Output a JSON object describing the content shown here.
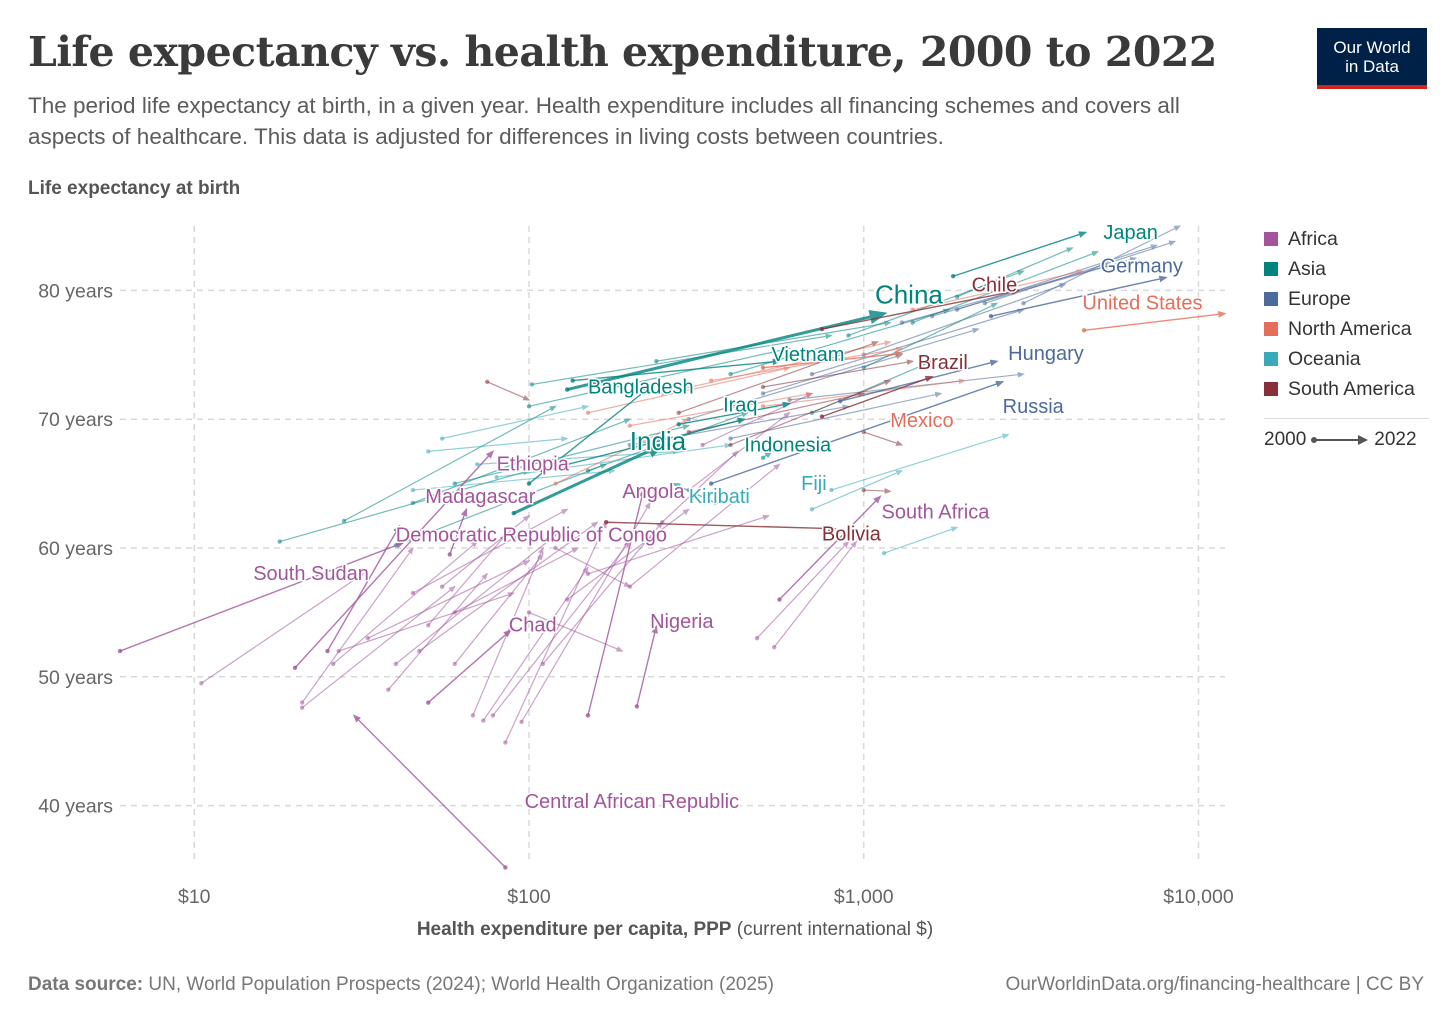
{
  "header": {
    "title": "Life expectancy vs. health expenditure, 2000 to 2022",
    "subtitle": "The period life expectancy at birth, in a given year. Health expenditure includes all financing schemes and covers all aspects of healthcare. This data is adjusted for differences in living costs between countries.",
    "logo_line1": "Our World",
    "logo_line2": "in Data"
  },
  "footer": {
    "source_label": "Data source:",
    "source_text": "UN, World Population Prospects (2024); World Health Organization (2025)",
    "right_text": "OurWorldinData.org/financing-healthcare | CC BY"
  },
  "colors": {
    "Africa": "#a2559c",
    "Asia": "#00847e",
    "Europe": "#4c6a9c",
    "North America": "#e56e5a",
    "Oceania": "#38aaba",
    "South America": "#883039"
  },
  "legend": {
    "items": [
      "Africa",
      "Asia",
      "Europe",
      "North America",
      "Oceania",
      "South America"
    ],
    "time_start": "2000",
    "time_end": "2022"
  },
  "chart_data": {
    "type": "scatter",
    "title": "Life expectancy vs. health expenditure, 2000 to 2022",
    "ylabel": "Life expectancy at birth",
    "xlabel_bold": "Health expenditure per capita, PPP",
    "xlabel_rest": " (current international $)",
    "x_scale": "log",
    "xlim": [
      6,
      12000
    ],
    "ylim": [
      35,
      85
    ],
    "x_ticks": [
      {
        "value": 10,
        "label": "$10"
      },
      {
        "value": 100,
        "label": "$100"
      },
      {
        "value": 1000,
        "label": "$1,000"
      },
      {
        "value": 10000,
        "label": "$10,000"
      }
    ],
    "y_ticks": [
      {
        "value": 40,
        "label": "40 years"
      },
      {
        "value": 50,
        "label": "50 years"
      },
      {
        "value": 60,
        "label": "60 years"
      },
      {
        "value": 70,
        "label": "70 years"
      },
      {
        "value": 80,
        "label": "80 years"
      }
    ],
    "grid": true,
    "legend_position": "right",
    "labeled_series": [
      {
        "name": "Japan",
        "region": "Asia",
        "x0": 1850,
        "y0": 81.1,
        "x1": 4600,
        "y1": 84.5
      },
      {
        "name": "Germany",
        "region": "Europe",
        "x0": 2400,
        "y0": 78.0,
        "x1": 8000,
        "y1": 81.0
      },
      {
        "name": "China",
        "region": "Asia",
        "x0": 130,
        "y0": 72.3,
        "x1": 1150,
        "y1": 78.2
      },
      {
        "name": "Chile",
        "region": "South America",
        "x0": 750,
        "y0": 77.0,
        "x1": 2900,
        "y1": 80.0
      },
      {
        "name": "United States",
        "region": "North America",
        "x0": 4550,
        "y0": 76.9,
        "x1": 12000,
        "y1": 78.2
      },
      {
        "name": "Vietnam",
        "region": "Asia",
        "x0": 135,
        "y0": 73.0,
        "x1": 560,
        "y1": 74.5
      },
      {
        "name": "Hungary",
        "region": "Europe",
        "x0": 850,
        "y0": 71.4,
        "x1": 2500,
        "y1": 74.5
      },
      {
        "name": "Brazil",
        "region": "South America",
        "x0": 750,
        "y0": 70.2,
        "x1": 1600,
        "y1": 73.3
      },
      {
        "name": "Bangladesh",
        "region": "Asia",
        "x0": 100,
        "y0": 65.0,
        "x1": 230,
        "y1": 72.5
      },
      {
        "name": "Iraq",
        "region": "Asia",
        "x0": 280,
        "y0": 69.6,
        "x1": 600,
        "y1": 71.2
      },
      {
        "name": "Russia",
        "region": "Europe",
        "x0": 350,
        "y0": 65.0,
        "x1": 2600,
        "y1": 72.9
      },
      {
        "name": "Mexico",
        "region": "North America",
        "x0": 500,
        "y0": 74.0,
        "x1": 1300,
        "y1": 75.1
      },
      {
        "name": "India",
        "region": "Asia",
        "x0": 90,
        "y0": 62.7,
        "x1": 250,
        "y1": 68.0
      },
      {
        "name": "Indonesia",
        "region": "Asia",
        "x0": 110,
        "y0": 66.0,
        "x1": 440,
        "y1": 70.0
      },
      {
        "name": "Ethiopia",
        "region": "Africa",
        "x0": 20,
        "y0": 50.7,
        "x1": 78,
        "y1": 67.5
      },
      {
        "name": "Madagascar",
        "region": "Africa",
        "x0": 58,
        "y0": 59.5,
        "x1": 65,
        "y1": 63.0
      },
      {
        "name": "Angola",
        "region": "Africa",
        "x0": 150,
        "y0": 47.0,
        "x1": 220,
        "y1": 64.5
      },
      {
        "name": "Kiribati",
        "region": "Oceania",
        "x0": 360,
        "y0": 63.5,
        "x1": 270,
        "y1": 65.0
      },
      {
        "name": "Fiji",
        "region": "Oceania",
        "x0": 500,
        "y0": 67.0,
        "x1": 530,
        "y1": 67.5
      },
      {
        "name": "South Africa",
        "region": "Africa",
        "x0": 560,
        "y0": 56.0,
        "x1": 1120,
        "y1": 64.0
      },
      {
        "name": "Bolivia",
        "region": "South America",
        "x0": 170,
        "y0": 62.0,
        "x1": 820,
        "y1": 61.5
      },
      {
        "name": "Democratic Republic of Congo",
        "region": "Africa",
        "x0": 25,
        "y0": 52.0,
        "x1": 41,
        "y1": 61.7
      },
      {
        "name": "South Sudan",
        "region": "Africa",
        "x0": 6,
        "y0": 52.0,
        "x1": 42,
        "y1": 60.4
      },
      {
        "name": "Chad",
        "region": "Africa",
        "x0": 50,
        "y0": 48.0,
        "x1": 88,
        "y1": 53.6
      },
      {
        "name": "Nigeria",
        "region": "Africa",
        "x0": 210,
        "y0": 47.7,
        "x1": 240,
        "y1": 53.9
      },
      {
        "name": "Central African Republic",
        "region": "Africa",
        "x0": 85,
        "y0": 35.2,
        "x1": 30,
        "y1": 47.0
      }
    ],
    "labels": [
      {
        "text": "Japan",
        "region": "Asia",
        "x": 5200,
        "y": 84.0
      },
      {
        "text": "Germany",
        "region": "Europe",
        "x": 5100,
        "y": 81.4
      },
      {
        "text": "China",
        "region": "Asia",
        "x": 1080,
        "y": 79.0,
        "big": true
      },
      {
        "text": "Chile",
        "region": "South America",
        "x": 2100,
        "y": 79.9
      },
      {
        "text": "United States",
        "region": "North America",
        "x": 4500,
        "y": 78.5
      },
      {
        "text": "Vietnam",
        "region": "Asia",
        "x": 530,
        "y": 74.5
      },
      {
        "text": "Hungary",
        "region": "Europe",
        "x": 2700,
        "y": 74.6
      },
      {
        "text": "Brazil",
        "region": "South America",
        "x": 1450,
        "y": 73.9
      },
      {
        "text": "Bangladesh",
        "region": "Asia",
        "x": 150,
        "y": 72.0
      },
      {
        "text": "Iraq",
        "region": "Asia",
        "x": 380,
        "y": 70.6
      },
      {
        "text": "Russia",
        "region": "Europe",
        "x": 2600,
        "y": 70.5
      },
      {
        "text": "Mexico",
        "region": "North America",
        "x": 1200,
        "y": 69.4
      },
      {
        "text": "India",
        "region": "Asia",
        "x": 200,
        "y": 67.6,
        "big": true
      },
      {
        "text": "Indonesia",
        "region": "Asia",
        "x": 440,
        "y": 67.5
      },
      {
        "text": "Ethiopia",
        "region": "Africa",
        "x": 80,
        "y": 66.0
      },
      {
        "text": "Madagascar",
        "region": "Africa",
        "x": 49,
        "y": 63.5
      },
      {
        "text": "Angola",
        "region": "Africa",
        "x": 190,
        "y": 63.9
      },
      {
        "text": "Kiribati",
        "region": "Oceania",
        "x": 300,
        "y": 63.5
      },
      {
        "text": "Fiji",
        "region": "Oceania",
        "x": 650,
        "y": 64.5
      },
      {
        "text": "South Africa",
        "region": "Africa",
        "x": 1130,
        "y": 62.3
      },
      {
        "text": "Bolivia",
        "region": "South America",
        "x": 750,
        "y": 60.6
      },
      {
        "text": "Democratic Republic of Congo",
        "region": "Africa",
        "x": 40,
        "y": 60.5
      },
      {
        "text": "South Sudan",
        "region": "Africa",
        "x": 15,
        "y": 57.5
      },
      {
        "text": "Chad",
        "region": "Africa",
        "x": 87,
        "y": 53.5
      },
      {
        "text": "Nigeria",
        "region": "Africa",
        "x": 230,
        "y": 53.8
      },
      {
        "text": "Central African Republic",
        "region": "Africa",
        "x": 97,
        "y": 39.8
      }
    ],
    "background_series": [
      {
        "region": "Africa",
        "x0": 10.5,
        "y0": 49.5,
        "x1": 32,
        "y1": 58.0
      },
      {
        "region": "Africa",
        "x0": 21,
        "y0": 48.0,
        "x1": 45,
        "y1": 60.0
      },
      {
        "region": "Africa",
        "x0": 21,
        "y0": 47.6,
        "x1": 60,
        "y1": 57.0
      },
      {
        "region": "Africa",
        "x0": 26,
        "y0": 51.0,
        "x1": 70,
        "y1": 60.5
      },
      {
        "region": "Africa",
        "x0": 27,
        "y0": 52.0,
        "x1": 90,
        "y1": 56.5
      },
      {
        "region": "Africa",
        "x0": 33,
        "y0": 53.0,
        "x1": 100,
        "y1": 59.0
      },
      {
        "region": "Africa",
        "x0": 40,
        "y0": 51.0,
        "x1": 120,
        "y1": 61.0
      },
      {
        "region": "Africa",
        "x0": 47,
        "y0": 52.0,
        "x1": 160,
        "y1": 62.0
      },
      {
        "region": "Africa",
        "x0": 50,
        "y0": 54.0,
        "x1": 85,
        "y1": 61.0
      },
      {
        "region": "Africa",
        "x0": 55,
        "y0": 57.0,
        "x1": 100,
        "y1": 62.5
      },
      {
        "region": "Africa",
        "x0": 60,
        "y0": 55.0,
        "x1": 140,
        "y1": 60.0
      },
      {
        "region": "Africa",
        "x0": 68,
        "y0": 47.0,
        "x1": 110,
        "y1": 60.0
      },
      {
        "region": "Africa",
        "x0": 73,
        "y0": 46.6,
        "x1": 150,
        "y1": 58.5
      },
      {
        "region": "Africa",
        "x0": 78,
        "y0": 47.0,
        "x1": 200,
        "y1": 60.5
      },
      {
        "region": "Africa",
        "x0": 85,
        "y0": 44.9,
        "x1": 170,
        "y1": 62.0
      },
      {
        "region": "Africa",
        "x0": 95,
        "y0": 46.5,
        "x1": 230,
        "y1": 63.5
      },
      {
        "region": "Africa",
        "x0": 100,
        "y0": 55.0,
        "x1": 190,
        "y1": 52.0
      },
      {
        "region": "Africa",
        "x0": 110,
        "y0": 51.0,
        "x1": 250,
        "y1": 62.0
      },
      {
        "region": "Africa",
        "x0": 130,
        "y0": 56.0,
        "x1": 300,
        "y1": 63.0
      },
      {
        "region": "Africa",
        "x0": 150,
        "y0": 58.0,
        "x1": 520,
        "y1": 62.5
      },
      {
        "region": "Africa",
        "x0": 200,
        "y0": 57.0,
        "x1": 560,
        "y1": 66.5
      },
      {
        "region": "Africa",
        "x0": 480,
        "y0": 53.0,
        "x1": 900,
        "y1": 60.5
      },
      {
        "region": "Africa",
        "x0": 540,
        "y0": 52.3,
        "x1": 950,
        "y1": 60.5
      },
      {
        "region": "Africa",
        "x0": 250,
        "y0": 62.0,
        "x1": 420,
        "y1": 67.5
      },
      {
        "region": "Africa",
        "x0": 300,
        "y0": 64.5,
        "x1": 600,
        "y1": 70.5
      },
      {
        "region": "Africa",
        "x0": 330,
        "y0": 68.0,
        "x1": 700,
        "y1": 72.0
      },
      {
        "region": "Africa",
        "x0": 38,
        "y0": 49.0,
        "x1": 75,
        "y1": 58.0
      },
      {
        "region": "Africa",
        "x0": 60,
        "y0": 51.0,
        "x1": 110,
        "y1": 59.5
      },
      {
        "region": "Africa",
        "x0": 45,
        "y0": 56.5,
        "x1": 130,
        "y1": 63.0
      },
      {
        "region": "Africa",
        "x0": 120,
        "y0": 60.0,
        "x1": 200,
        "y1": 57.0
      },
      {
        "region": "Asia",
        "x0": 18,
        "y0": 60.5,
        "x1": 100,
        "y1": 66.0
      },
      {
        "region": "Asia",
        "x0": 28,
        "y0": 62.1,
        "x1": 120,
        "y1": 71.0
      },
      {
        "region": "Asia",
        "x0": 45,
        "y0": 63.5,
        "x1": 200,
        "y1": 70.0
      },
      {
        "region": "Asia",
        "x0": 40,
        "y0": 60.2,
        "x1": 170,
        "y1": 66.5
      },
      {
        "region": "Asia",
        "x0": 100,
        "y0": 71.0,
        "x1": 600,
        "y1": 75.5
      },
      {
        "region": "Asia",
        "x0": 102,
        "y0": 72.7,
        "x1": 800,
        "y1": 76.5
      },
      {
        "region": "Asia",
        "x0": 240,
        "y0": 74.5,
        "x1": 1200,
        "y1": 77.5
      },
      {
        "region": "Asia",
        "x0": 400,
        "y0": 73.5,
        "x1": 1800,
        "y1": 78.5
      },
      {
        "region": "Asia",
        "x0": 900,
        "y0": 76.5,
        "x1": 3000,
        "y1": 81.5
      },
      {
        "region": "Asia",
        "x0": 1400,
        "y0": 77.5,
        "x1": 5000,
        "y1": 83.0
      },
      {
        "region": "Asia",
        "x0": 1900,
        "y0": 79.5,
        "x1": 4200,
        "y1": 83.3
      },
      {
        "region": "Asia",
        "x0": 1000,
        "y0": 74.0,
        "x1": 2500,
        "y1": 79.0
      },
      {
        "region": "Asia",
        "x0": 60,
        "y0": 65.0,
        "x1": 300,
        "y1": 69.5
      },
      {
        "region": "Asia",
        "x0": 150,
        "y0": 66.0,
        "x1": 450,
        "y1": 70.5
      },
      {
        "region": "Asia",
        "x0": 700,
        "y0": 70.5,
        "x1": 1600,
        "y1": 74.5
      },
      {
        "region": "Europe",
        "x0": 300,
        "y0": 70.0,
        "x1": 1300,
        "y1": 75.0
      },
      {
        "region": "Europe",
        "x0": 500,
        "y0": 72.0,
        "x1": 2200,
        "y1": 77.0
      },
      {
        "region": "Europe",
        "x0": 700,
        "y0": 73.5,
        "x1": 3000,
        "y1": 78.5
      },
      {
        "region": "Europe",
        "x0": 1000,
        "y0": 75.0,
        "x1": 4000,
        "y1": 80.5
      },
      {
        "region": "Europe",
        "x0": 1300,
        "y0": 77.5,
        "x1": 5500,
        "y1": 82.0
      },
      {
        "region": "Europe",
        "x0": 1600,
        "y0": 78.0,
        "x1": 6500,
        "y1": 82.5
      },
      {
        "region": "Europe",
        "x0": 1900,
        "y0": 78.5,
        "x1": 7500,
        "y1": 83.5
      },
      {
        "region": "Europe",
        "x0": 2300,
        "y0": 79.0,
        "x1": 8500,
        "y1": 83.8
      },
      {
        "region": "Europe",
        "x0": 3000,
        "y0": 79.0,
        "x1": 8800,
        "y1": 85.0
      },
      {
        "region": "Europe",
        "x0": 400,
        "y0": 68.5,
        "x1": 1700,
        "y1": 72.0
      },
      {
        "region": "Europe",
        "x0": 200,
        "y0": 68.0,
        "x1": 900,
        "y1": 71.0
      },
      {
        "region": "Europe",
        "x0": 600,
        "y0": 71.5,
        "x1": 3000,
        "y1": 73.5
      },
      {
        "region": "North America",
        "x0": 250,
        "y0": 72.0,
        "x1": 1200,
        "y1": 76.0
      },
      {
        "region": "North America",
        "x0": 150,
        "y0": 70.5,
        "x1": 600,
        "y1": 74.0
      },
      {
        "region": "North America",
        "x0": 350,
        "y0": 73.0,
        "x1": 1300,
        "y1": 75.5
      },
      {
        "region": "North America",
        "x0": 200,
        "y0": 69.5,
        "x1": 700,
        "y1": 72.0
      },
      {
        "region": "North America",
        "x0": 500,
        "y0": 71.0,
        "x1": 2000,
        "y1": 73.0
      },
      {
        "region": "North America",
        "x0": 1400,
        "y0": 78.5,
        "x1": 4500,
        "y1": 81.5
      },
      {
        "region": "North America",
        "x0": 120,
        "y0": 65.0,
        "x1": 300,
        "y1": 70.0
      },
      {
        "region": "Oceania",
        "x0": 55,
        "y0": 68.5,
        "x1": 150,
        "y1": 71.0
      },
      {
        "region": "Oceania",
        "x0": 50,
        "y0": 67.5,
        "x1": 130,
        "y1": 68.5
      },
      {
        "region": "Oceania",
        "x0": 45,
        "y0": 64.5,
        "x1": 180,
        "y1": 66.0
      },
      {
        "region": "Oceania",
        "x0": 70,
        "y0": 66.5,
        "x1": 280,
        "y1": 67.5
      },
      {
        "region": "Oceania",
        "x0": 80,
        "y0": 65.5,
        "x1": 400,
        "y1": 68.0
      },
      {
        "region": "Oceania",
        "x0": 1150,
        "y0": 59.6,
        "x1": 1900,
        "y1": 61.6
      },
      {
        "region": "Oceania",
        "x0": 800,
        "y0": 64.5,
        "x1": 2700,
        "y1": 68.8
      },
      {
        "region": "Oceania",
        "x0": 700,
        "y0": 63.0,
        "x1": 1300,
        "y1": 66.0
      },
      {
        "region": "South America",
        "x0": 75,
        "y0": 72.9,
        "x1": 100,
        "y1": 71.5
      },
      {
        "region": "South America",
        "x0": 400,
        "y0": 68.0,
        "x1": 1200,
        "y1": 73.0
      },
      {
        "region": "South America",
        "x0": 300,
        "y0": 69.0,
        "x1": 1000,
        "y1": 72.0
      },
      {
        "region": "South America",
        "x0": 500,
        "y0": 72.5,
        "x1": 1400,
        "y1": 74.5
      },
      {
        "region": "South America",
        "x0": 280,
        "y0": 70.5,
        "x1": 1100,
        "y1": 76.0
      },
      {
        "region": "South America",
        "x0": 1000,
        "y0": 64.5,
        "x1": 1200,
        "y1": 64.4
      },
      {
        "region": "South America",
        "x0": 1000,
        "y0": 69.0,
        "x1": 1300,
        "y1": 68.0
      }
    ]
  }
}
